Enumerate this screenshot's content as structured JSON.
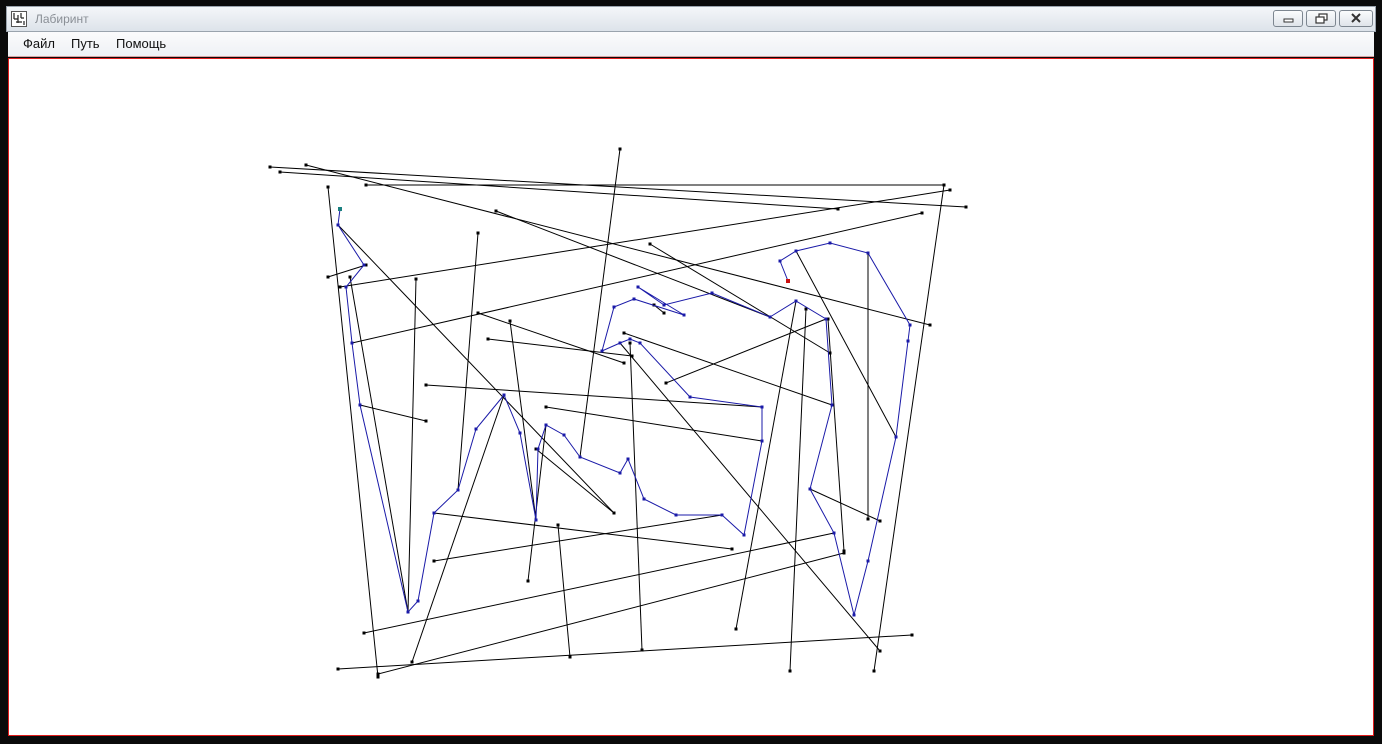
{
  "window": {
    "title": "Лабиринт"
  },
  "menu": {
    "items": [
      {
        "label": "Файл"
      },
      {
        "label": "Путь"
      },
      {
        "label": "Помощь"
      }
    ]
  },
  "icons": {
    "app": "maze-app-icon",
    "minimize": "minimize-icon",
    "maximize": "restore-icon",
    "close": "close-icon"
  },
  "colors": {
    "wall": "#000000",
    "path": "#1a1aa8",
    "start": "#1a8080",
    "end": "#cc1111",
    "canvas_border": "#e01b1b"
  }
}
